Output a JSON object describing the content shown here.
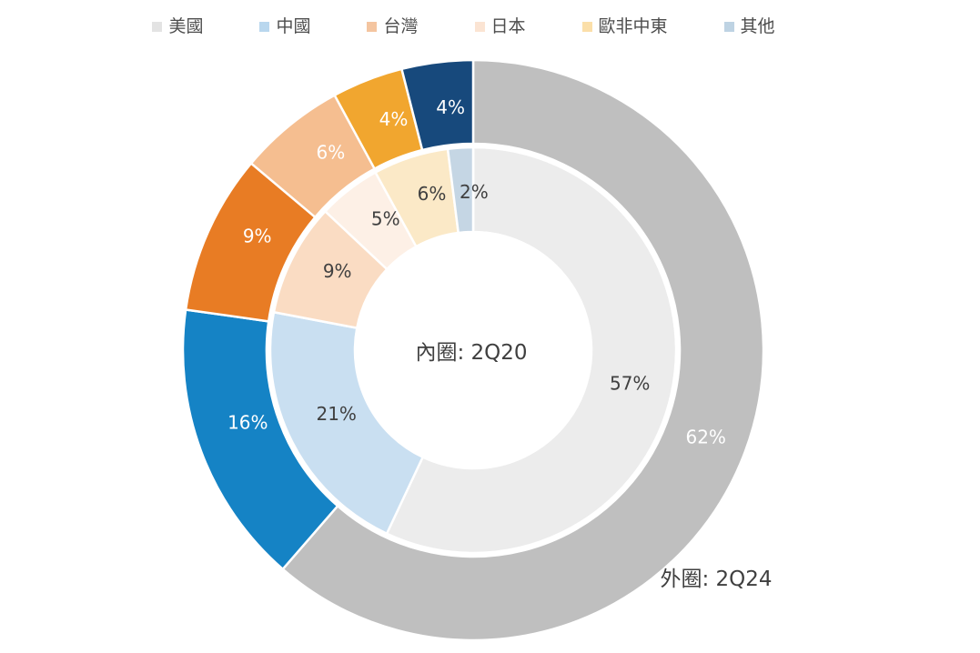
{
  "figure": {
    "background": "#FFFFFF"
  },
  "legend": {
    "text_color": "#4D4D4D",
    "items": [
      {
        "label": "美國",
        "color": "#E3E3E3"
      },
      {
        "label": "中國",
        "color": "#B9D7EE"
      },
      {
        "label": "台灣",
        "color": "#F4C5A0"
      },
      {
        "label": "日本",
        "color": "#FBE4D3"
      },
      {
        "label": "歐非中東",
        "color": "#FBDFA9"
      },
      {
        "label": "其他",
        "color": "#BED3E3"
      }
    ]
  },
  "chart_data": {
    "type": "donut",
    "title": "",
    "legend_position": "top",
    "categories": [
      "美國",
      "中國",
      "台灣",
      "日本",
      "歐非中東",
      "其他"
    ],
    "rings": [
      {
        "id": "outer",
        "name": "外圈: 2Q24",
        "period": "2Q24",
        "values": [
          62,
          16,
          9,
          6,
          4,
          4
        ],
        "labels": [
          "62%",
          "16%",
          "9%",
          "6%",
          "4%",
          "4%"
        ],
        "colors": [
          "#BFBFBF",
          "#1583C5",
          "#E87C24",
          "#F5BE90",
          "#F1A62F",
          "#17497C"
        ],
        "label_colors": [
          "#FFFFFF",
          "#FFFFFF",
          "#FFFFFF",
          "#FFFFFF",
          "#FFFFFF",
          "#FFFFFF"
        ]
      },
      {
        "id": "inner",
        "name": "內圈: 2Q20",
        "period": "2Q20",
        "values": [
          57,
          21,
          9,
          5,
          6,
          2
        ],
        "labels": [
          "57%",
          "21%",
          "9%",
          "5%",
          "6%",
          "2%"
        ],
        "colors": [
          "#ECECEC",
          "#C9DFF1",
          "#FADCC3",
          "#FDF0E6",
          "#FBE9C7",
          "#C5D6E4"
        ],
        "label_colors": [
          "#404040",
          "#404040",
          "#404040",
          "#404040",
          "#404040",
          "#404040"
        ]
      }
    ],
    "annotations": {
      "inner": "內圈: 2Q20",
      "outer": "外圈: 2Q24"
    },
    "label_text_dark": "#404040",
    "label_text_light": "#FFFFFF"
  }
}
